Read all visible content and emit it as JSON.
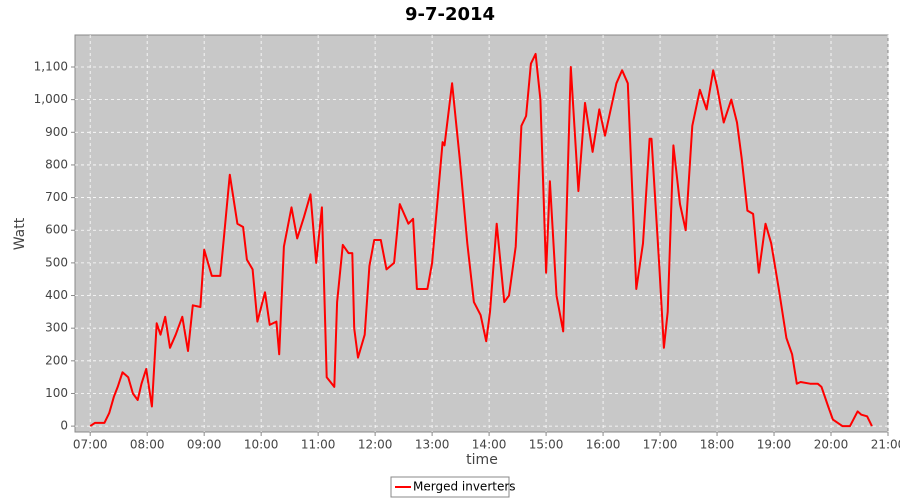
{
  "chart_data": {
    "type": "line",
    "title": "9-7-2014",
    "x_label": "time",
    "y_label": "Watt",
    "x": [
      "07:00",
      "07:05",
      "07:15",
      "07:20",
      "07:25",
      "07:29",
      "07:34",
      "07:40",
      "07:45",
      "07:50",
      "07:54",
      "07:59",
      "08:05",
      "08:10",
      "08:14",
      "08:19",
      "08:24",
      "08:30",
      "08:37",
      "08:43",
      "08:48",
      "08:56",
      "09:00",
      "09:08",
      "09:17",
      "09:27",
      "09:35",
      "09:41",
      "09:45",
      "09:51",
      "09:56",
      "10:04",
      "10:09",
      "10:16",
      "10:19",
      "10:24",
      "10:32",
      "10:38",
      "10:45",
      "10:52",
      "10:58",
      "11:04",
      "11:09",
      "11:17",
      "11:20",
      "11:26",
      "11:32",
      "11:36",
      "11:38",
      "11:42",
      "11:49",
      "11:54",
      "11:59",
      "12:06",
      "12:12",
      "12:20",
      "12:26",
      "12:35",
      "12:40",
      "12:44",
      "12:55",
      "13:00",
      "13:11",
      "13:13",
      "13:21",
      "13:29",
      "13:37",
      "13:44",
      "13:51",
      "13:57",
      "14:01",
      "14:08",
      "14:16",
      "14:21",
      "14:28",
      "14:34",
      "14:39",
      "14:44",
      "14:49",
      "14:54",
      "15:00",
      "15:04",
      "15:11",
      "15:18",
      "15:26",
      "15:34",
      "15:41",
      "15:49",
      "15:56",
      "16:02",
      "16:14",
      "16:20",
      "16:26",
      "16:35",
      "16:42",
      "16:49",
      "16:51",
      "16:59",
      "17:04",
      "17:08",
      "17:14",
      "17:21",
      "17:27",
      "17:34",
      "17:42",
      "17:49",
      "17:56",
      "18:00",
      "18:07",
      "18:15",
      "18:21",
      "18:26",
      "18:32",
      "18:38",
      "18:44",
      "18:51",
      "18:57",
      "19:05",
      "19:13",
      "19:19",
      "19:24",
      "19:28",
      "19:38",
      "19:46",
      "19:50",
      "19:57",
      "20:02",
      "20:12",
      "20:20",
      "20:28",
      "20:32",
      "20:38",
      "20:43"
    ],
    "series": [
      {
        "name": "Merged inverters",
        "color": "#ff0000",
        "values": [
          0,
          10,
          10,
          40,
          90,
          120,
          165,
          150,
          100,
          80,
          130,
          175,
          60,
          315,
          280,
          335,
          240,
          280,
          335,
          230,
          370,
          365,
          540,
          460,
          460,
          770,
          620,
          610,
          510,
          480,
          320,
          410,
          310,
          320,
          220,
          550,
          670,
          575,
          640,
          710,
          500,
          670,
          150,
          120,
          380,
          555,
          530,
          530,
          300,
          210,
          280,
          490,
          570,
          570,
          480,
          500,
          680,
          620,
          635,
          420,
          420,
          500,
          870,
          860,
          1050,
          820,
          560,
          380,
          340,
          260,
          350,
          620,
          380,
          400,
          550,
          920,
          950,
          1110,
          1140,
          1000,
          470,
          750,
          400,
          290,
          1100,
          720,
          990,
          840,
          970,
          890,
          1050,
          1090,
          1050,
          420,
          560,
          880,
          880,
          500,
          240,
          350,
          860,
          680,
          600,
          920,
          1030,
          970,
          1090,
          1040,
          930,
          1000,
          930,
          820,
          660,
          650,
          470,
          620,
          560,
          420,
          270,
          220,
          130,
          135,
          130,
          130,
          120,
          60,
          20,
          0,
          0,
          45,
          35,
          30,
          0
        ]
      }
    ],
    "xlim": [
      "06:44",
      "21:00"
    ],
    "xticks": [
      "07:00",
      "08:00",
      "09:00",
      "10:00",
      "11:00",
      "12:00",
      "13:00",
      "14:00",
      "15:00",
      "16:00",
      "17:00",
      "18:00",
      "19:00",
      "20:00",
      "21:00"
    ],
    "ylim": [
      -18,
      1198
    ],
    "yticks": [
      0,
      100,
      200,
      300,
      400,
      500,
      600,
      700,
      800,
      900,
      {
        "value": 1000,
        "label": "1,000"
      },
      {
        "value": 1100,
        "label": "1,100"
      }
    ],
    "grid": true,
    "legend": "bottom"
  }
}
